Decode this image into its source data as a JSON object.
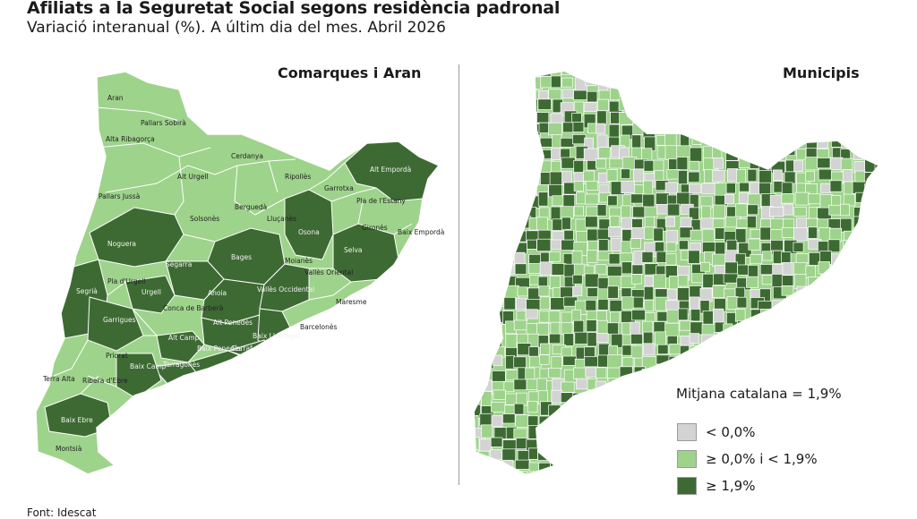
{
  "title": "Afiliats a la Seguretat Social segons residència padronal",
  "subtitle": "Variació interanual (%). A últim dia del mes. Abril 2026",
  "panels": {
    "left_title": "Comarques i Aran",
    "right_title": "Municipis"
  },
  "legend": {
    "average": "Mitjana catalana = 1,9%",
    "items": [
      {
        "label": "< 0,0%",
        "color": "#d3d3d3"
      },
      {
        "label": "≥ 0,0% i < 1,9%",
        "color": "#9ed38b"
      },
      {
        "label": "≥ 1,9%",
        "color": "#3d6a33"
      }
    ]
  },
  "source": "Font: Idescat",
  "colors": {
    "light": "#9ed38b",
    "dark": "#3d6a33",
    "grey": "#d3d3d3",
    "border": "#ffffff"
  },
  "comarques": [
    {
      "name": "Aran",
      "class": "light"
    },
    {
      "name": "Pallars Sobirà",
      "class": "light"
    },
    {
      "name": "Alta Ribagorça",
      "class": "light"
    },
    {
      "name": "Alt Urgell",
      "class": "light"
    },
    {
      "name": "Cerdanya",
      "class": "light"
    },
    {
      "name": "Pallars Jussà",
      "class": "light"
    },
    {
      "name": "Ripollès",
      "class": "light"
    },
    {
      "name": "Garrotxa",
      "class": "light"
    },
    {
      "name": "Alt Empordà",
      "class": "dark"
    },
    {
      "name": "Pla de l'Estany",
      "class": "light"
    },
    {
      "name": "Berguedà",
      "class": "light"
    },
    {
      "name": "Solsonès",
      "class": "light"
    },
    {
      "name": "Lluçanès",
      "class": "light"
    },
    {
      "name": "Osona",
      "class": "dark"
    },
    {
      "name": "Gironès",
      "class": "light"
    },
    {
      "name": "Baix Empordà",
      "class": "light"
    },
    {
      "name": "Noguera",
      "class": "dark"
    },
    {
      "name": "Selva",
      "class": "dark"
    },
    {
      "name": "Bages",
      "class": "dark"
    },
    {
      "name": "Moianès",
      "class": "light"
    },
    {
      "name": "Segarra",
      "class": "dark"
    },
    {
      "name": "Pla d'Urgell",
      "class": "light"
    },
    {
      "name": "Vallès Oriental",
      "class": "light"
    },
    {
      "name": "Segrià",
      "class": "dark"
    },
    {
      "name": "Urgell",
      "class": "dark"
    },
    {
      "name": "Anoia",
      "class": "dark"
    },
    {
      "name": "Vallès Occidental",
      "class": "dark"
    },
    {
      "name": "Maresme",
      "class": "light"
    },
    {
      "name": "Conca de Barberà",
      "class": "light"
    },
    {
      "name": "Garrigues",
      "class": "dark"
    },
    {
      "name": "Alt Penedès",
      "class": "dark"
    },
    {
      "name": "Alt Camp",
      "class": "dark"
    },
    {
      "name": "Baix Llobregat",
      "class": "dark"
    },
    {
      "name": "Barcelonès",
      "class": "light"
    },
    {
      "name": "Priorat",
      "class": "light"
    },
    {
      "name": "Baix Penedès",
      "class": "dark"
    },
    {
      "name": "Garraf",
      "class": "dark"
    },
    {
      "name": "Tarragonès",
      "class": "dark"
    },
    {
      "name": "Baix Camp",
      "class": "dark"
    },
    {
      "name": "Terra Alta",
      "class": "light"
    },
    {
      "name": "Ribera d'Ebre",
      "class": "light"
    },
    {
      "name": "Baix Ebre",
      "class": "dark"
    },
    {
      "name": "Montsià",
      "class": "light"
    }
  ]
}
